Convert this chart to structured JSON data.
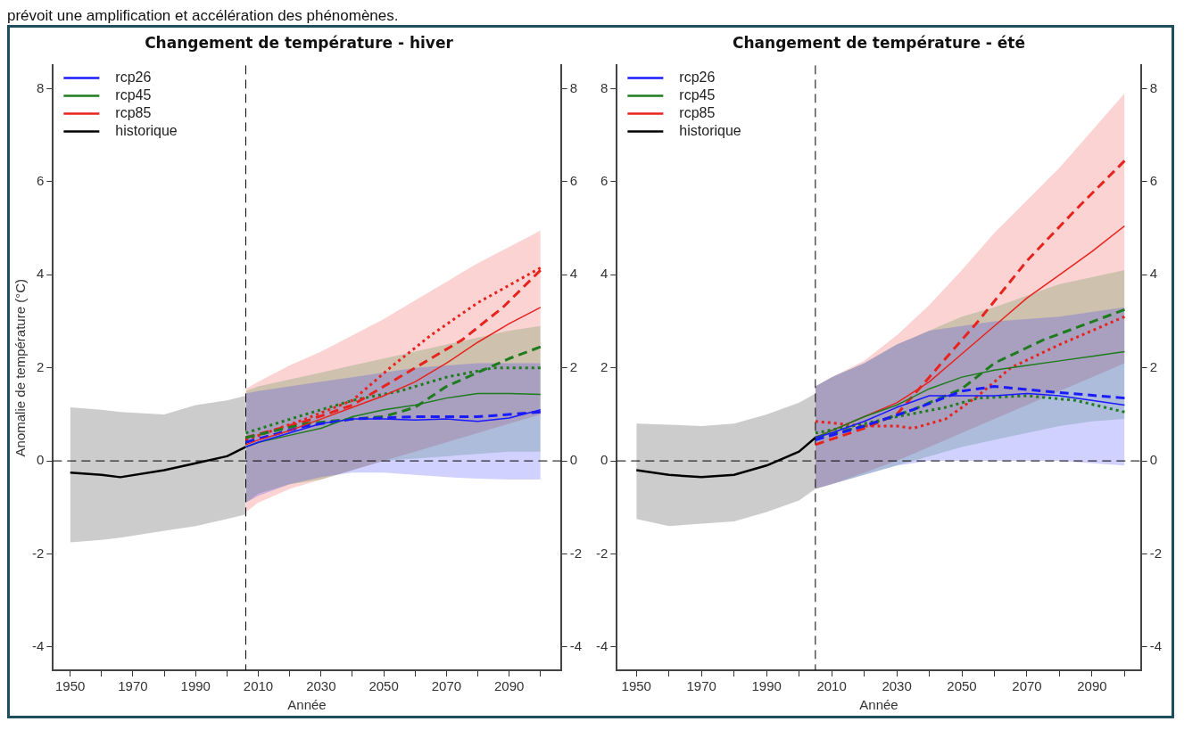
{
  "chart_data": [
    {
      "type": "line",
      "title": "Changement de température - hiver",
      "xlabel": "Année",
      "ylabel": "Anomalie de température (°C)",
      "annotations": [
        "prévoit une amplification et accélération des phénomènes."
      ],
      "legend": "top left",
      "xlim": [
        1944.5,
        2106.5
      ],
      "ylim": [
        -4.5,
        8.5
      ],
      "y2lim": [
        -4.5,
        8.5
      ],
      "xticks": [
        1950,
        {
          "value": 1960,
          "label": null
        },
        1970,
        {
          "value": 1980,
          "label": null
        },
        1990,
        {
          "value": 2000,
          "label": null
        },
        2010,
        {
          "value": 2020,
          "label": null
        },
        2030,
        {
          "value": 2040,
          "label": null
        },
        2050,
        {
          "value": 2060,
          "label": null
        },
        2070,
        {
          "value": 2080,
          "label": null
        },
        2090,
        {
          "value": 2100,
          "label": null
        }
      ],
      "yticks": [
        -4,
        -2,
        0,
        2,
        4,
        6,
        8
      ],
      "y2ticks": [
        -4,
        -2,
        0,
        2,
        4,
        6,
        8
      ],
      "ref_lines": [
        {
          "axis": "x",
          "value": 2006,
          "color": "#000000",
          "line_style": "dashed"
        },
        {
          "axis": "y",
          "value": 0,
          "color": "#000000",
          "line_style": "dashed"
        }
      ],
      "series": [
        {
          "name": "rcp26",
          "color": "#1a1aff",
          "line_style": "solid",
          "x": [
            2006,
            2010,
            2020,
            2030,
            2040,
            2050,
            2060,
            2070,
            2080,
            2090,
            2100
          ],
          "values": [
            0.3,
            0.4,
            0.6,
            0.8,
            0.9,
            0.9,
            0.88,
            0.9,
            0.85,
            0.92,
            1.1
          ],
          "upper": [
            1.45,
            1.5,
            1.6,
            1.7,
            1.8,
            1.9,
            2.0,
            2.05,
            2.1,
            2.1,
            2.1
          ],
          "lower": [
            -0.9,
            -0.75,
            -0.5,
            -0.35,
            -0.25,
            -0.25,
            -0.3,
            -0.35,
            -0.38,
            -0.4,
            -0.4
          ]
        },
        {
          "name": "rcp45",
          "color": "#1e7b1e",
          "line_style": "solid",
          "x": [
            2006,
            2010,
            2020,
            2030,
            2040,
            2050,
            2060,
            2070,
            2080,
            2090,
            2100
          ],
          "values": [
            0.3,
            0.4,
            0.55,
            0.7,
            0.95,
            1.1,
            1.2,
            1.35,
            1.45,
            1.45,
            1.43
          ],
          "upper": [
            1.5,
            1.6,
            1.75,
            1.9,
            2.05,
            2.2,
            2.35,
            2.5,
            2.65,
            2.8,
            2.9
          ],
          "lower": [
            -0.9,
            -0.7,
            -0.5,
            -0.4,
            -0.2,
            0.0,
            0.05,
            0.1,
            0.15,
            0.2,
            0.2
          ]
        },
        {
          "name": "rcp85",
          "color": "#e8231e",
          "line_style": "solid",
          "x": [
            2006,
            2010,
            2020,
            2030,
            2040,
            2050,
            2060,
            2070,
            2080,
            2090,
            2100
          ],
          "values": [
            0.35,
            0.45,
            0.65,
            0.9,
            1.15,
            1.4,
            1.7,
            2.1,
            2.55,
            2.95,
            3.3
          ],
          "upper": [
            1.55,
            1.7,
            2.05,
            2.35,
            2.7,
            3.05,
            3.45,
            3.85,
            4.25,
            4.6,
            4.95
          ],
          "lower": [
            -1.1,
            -0.9,
            -0.6,
            -0.4,
            -0.2,
            0.0,
            0.2,
            0.4,
            0.6,
            0.8,
            1.0
          ]
        },
        {
          "name": "historique",
          "color": "#000000",
          "line_style": "solid",
          "x": [
            1950,
            1960,
            1966,
            1980,
            1990,
            2000,
            2006
          ],
          "values": [
            -0.25,
            -0.3,
            -0.35,
            -0.2,
            -0.05,
            0.1,
            0.3
          ],
          "upper": [
            1.15,
            1.1,
            1.05,
            1.0,
            1.2,
            1.3,
            1.4
          ],
          "lower": [
            -1.75,
            -1.7,
            -1.65,
            -1.5,
            -1.4,
            -1.25,
            -1.15
          ]
        },
        {
          "color": "#1a1aff",
          "line_style": "dashed",
          "x": [
            2006,
            2025,
            2040,
            2060,
            2080,
            2100
          ],
          "values": [
            0.4,
            0.75,
            0.9,
            0.95,
            0.95,
            1.05
          ]
        },
        {
          "color": "#1e7b1e",
          "line_style": "dashed",
          "x": [
            2006,
            2025,
            2040,
            2050,
            2060,
            2070,
            2080,
            2090,
            2100
          ],
          "values": [
            0.5,
            0.8,
            0.9,
            0.95,
            1.15,
            1.6,
            1.9,
            2.2,
            2.45
          ]
        },
        {
          "color": "#e8231e",
          "line_style": "dashed",
          "x": [
            2006,
            2025,
            2040,
            2050,
            2060,
            2075,
            2088,
            2100
          ],
          "values": [
            0.5,
            0.85,
            1.2,
            1.6,
            2.0,
            2.6,
            3.3,
            4.1
          ]
        },
        {
          "color": "#1e7b1e",
          "line_style": "dotted",
          "x": [
            2006,
            2025,
            2040,
            2055,
            2070,
            2085,
            2100
          ],
          "values": [
            0.6,
            1.0,
            1.3,
            1.5,
            1.8,
            2.0,
            2.0
          ]
        },
        {
          "color": "#e8231e",
          "line_style": "dotted",
          "x": [
            2006,
            2025,
            2040,
            2052,
            2065,
            2080,
            2100
          ],
          "values": [
            0.45,
            0.9,
            1.3,
            2.0,
            2.7,
            3.4,
            4.15
          ]
        }
      ]
    },
    {
      "type": "line",
      "title": "Changement de température - été",
      "xlabel": "Année",
      "legend": "top left",
      "xlim": [
        1944,
        2105
      ],
      "ylim": [
        -4.5,
        8.5
      ],
      "y2lim": [
        -4.5,
        8.5
      ],
      "xticks": [
        1950,
        {
          "value": 1960,
          "label": null
        },
        1970,
        {
          "value": 1980,
          "label": null
        },
        1990,
        {
          "value": 2000,
          "label": null
        },
        2010,
        {
          "value": 2020,
          "label": null
        },
        2030,
        {
          "value": 2040,
          "label": null
        },
        2050,
        {
          "value": 2060,
          "label": null
        },
        2070,
        {
          "value": 2080,
          "label": null
        },
        2090,
        {
          "value": 2100,
          "label": null
        }
      ],
      "yticks": [
        -4,
        -2,
        0,
        2,
        4,
        6,
        8
      ],
      "y2ticks": [
        -4,
        -2,
        0,
        2,
        4,
        6,
        8
      ],
      "ref_lines": [
        {
          "axis": "x",
          "value": 2005,
          "color": "#000000",
          "line_style": "dashed"
        },
        {
          "axis": "y",
          "value": 0,
          "color": "#000000",
          "line_style": "dashed"
        }
      ],
      "series": [
        {
          "name": "rcp26",
          "color": "#1a1aff",
          "line_style": "solid",
          "x": [
            2005,
            2010,
            2020,
            2030,
            2040,
            2050,
            2060,
            2070,
            2080,
            2090,
            2100
          ],
          "values": [
            0.5,
            0.6,
            0.85,
            1.15,
            1.4,
            1.4,
            1.4,
            1.45,
            1.4,
            1.3,
            1.2
          ],
          "upper": [
            1.6,
            1.8,
            2.1,
            2.5,
            2.8,
            2.9,
            3.0,
            3.05,
            3.1,
            3.2,
            3.3
          ],
          "lower": [
            -0.6,
            -0.5,
            -0.3,
            -0.1,
            0.0,
            0.0,
            0.0,
            0.0,
            0.0,
            -0.05,
            -0.1
          ]
        },
        {
          "name": "rcp45",
          "color": "#1e7b1e",
          "line_style": "solid",
          "x": [
            2005,
            2010,
            2020,
            2030,
            2040,
            2050,
            2060,
            2070,
            2080,
            2090,
            2100
          ],
          "values": [
            0.5,
            0.65,
            0.95,
            1.2,
            1.55,
            1.8,
            1.95,
            2.05,
            2.15,
            2.25,
            2.35
          ],
          "upper": [
            1.6,
            1.8,
            2.1,
            2.5,
            2.8,
            3.1,
            3.3,
            3.55,
            3.8,
            3.95,
            4.1
          ],
          "lower": [
            -0.6,
            -0.5,
            -0.3,
            -0.1,
            0.1,
            0.3,
            0.45,
            0.6,
            0.75,
            0.85,
            0.9
          ]
        },
        {
          "name": "rcp85",
          "color": "#e8231e",
          "line_style": "solid",
          "x": [
            2005,
            2010,
            2020,
            2030,
            2040,
            2050,
            2060,
            2070,
            2080,
            2090,
            2100
          ],
          "values": [
            0.5,
            0.65,
            0.95,
            1.25,
            1.7,
            2.3,
            2.9,
            3.5,
            4.0,
            4.5,
            5.05
          ],
          "upper": [
            1.6,
            1.8,
            2.15,
            2.7,
            3.35,
            4.1,
            4.9,
            5.6,
            6.3,
            7.1,
            7.9
          ],
          "lower": [
            -0.6,
            -0.5,
            -0.25,
            0.0,
            0.3,
            0.6,
            0.9,
            1.2,
            1.5,
            1.8,
            2.1
          ]
        },
        {
          "name": "historique",
          "color": "#000000",
          "line_style": "solid",
          "x": [
            1950,
            1960,
            1970,
            1980,
            1990,
            2000,
            2005
          ],
          "values": [
            -0.2,
            -0.3,
            -0.35,
            -0.3,
            -0.1,
            0.2,
            0.5
          ],
          "upper": [
            0.8,
            0.78,
            0.75,
            0.8,
            1.0,
            1.25,
            1.45
          ],
          "lower": [
            -1.25,
            -1.4,
            -1.35,
            -1.3,
            -1.1,
            -0.85,
            -0.6
          ]
        },
        {
          "color": "#1a1aff",
          "line_style": "dashed",
          "x": [
            2005,
            2020,
            2035,
            2050,
            2060,
            2075,
            2100
          ],
          "values": [
            0.45,
            0.75,
            1.1,
            1.5,
            1.6,
            1.5,
            1.35
          ]
        },
        {
          "color": "#1e7b1e",
          "line_style": "dashed",
          "x": [
            2005,
            2020,
            2035,
            2050,
            2060,
            2075,
            2100
          ],
          "values": [
            0.5,
            0.75,
            1.1,
            1.55,
            2.1,
            2.6,
            3.25
          ]
        },
        {
          "color": "#e8231e",
          "line_style": "dashed",
          "x": [
            2005,
            2020,
            2030,
            2040,
            2055,
            2070,
            2085,
            2100
          ],
          "values": [
            0.35,
            0.7,
            1.0,
            1.8,
            3.0,
            4.3,
            5.4,
            6.45
          ]
        },
        {
          "color": "#1e7b1e",
          "line_style": "dotted",
          "x": [
            2005,
            2020,
            2030,
            2045,
            2055,
            2070,
            2085,
            2100
          ],
          "values": [
            0.6,
            0.8,
            0.95,
            1.15,
            1.35,
            1.4,
            1.3,
            1.05
          ]
        },
        {
          "color": "#e8231e",
          "line_style": "dotted",
          "x": [
            2005,
            2020,
            2030,
            2035,
            2045,
            2055,
            2065,
            2080,
            2100
          ],
          "values": [
            0.85,
            0.75,
            0.75,
            0.7,
            0.9,
            1.4,
            2.0,
            2.5,
            3.1
          ]
        }
      ]
    }
  ]
}
